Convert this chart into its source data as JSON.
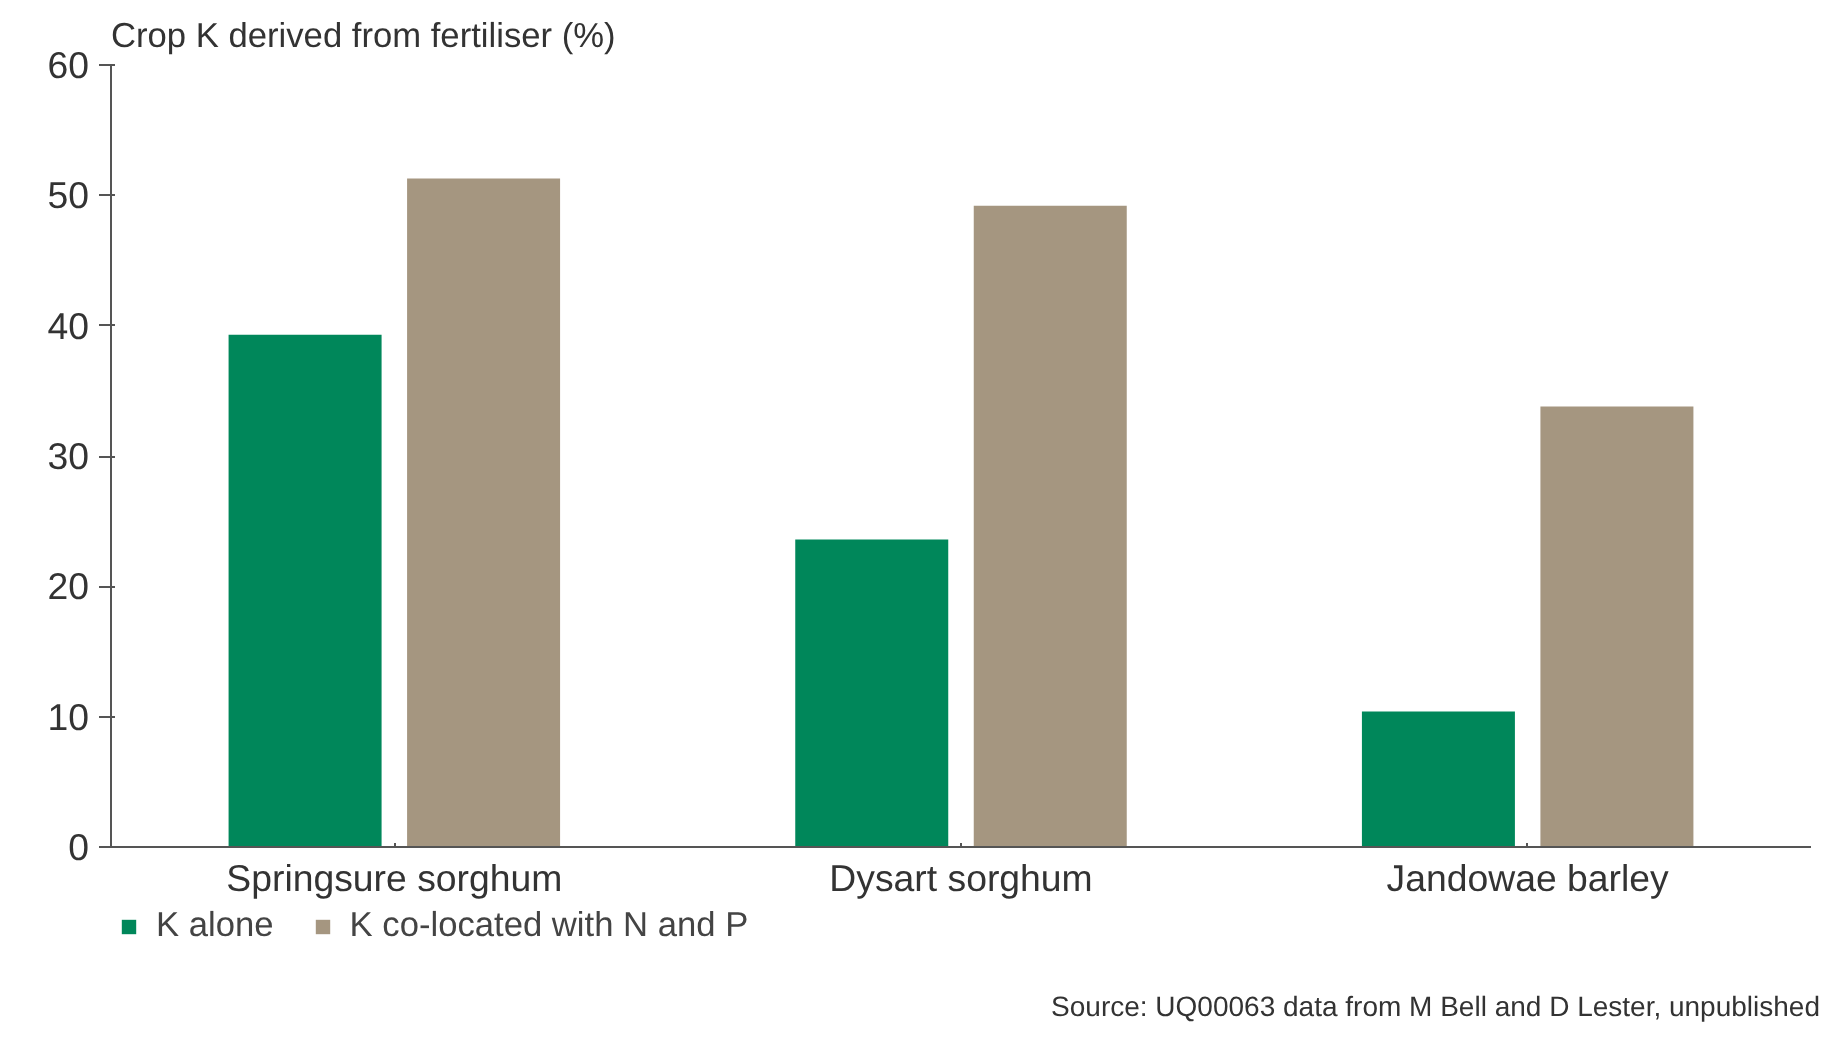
{
  "chart_data": {
    "type": "bar",
    "ylabel": "Crop K derived from fertiliser (%)",
    "categories": [
      "Springsure sorghum",
      "Dysart sorghum",
      "Jandowae barley"
    ],
    "series": [
      {
        "name": "K alone",
        "color": "#00875a",
        "values": [
          39.3,
          23.6,
          10.4
        ]
      },
      {
        "name": "K co-located with N and P",
        "color": "#a59680",
        "values": [
          51.3,
          49.2,
          33.8
        ]
      }
    ],
    "ylim": [
      0,
      60
    ],
    "yticks": [
      0,
      10,
      20,
      30,
      40,
      50,
      60
    ],
    "grid": false,
    "legend": "bottom left",
    "annotations": [
      "Source: UQ00063 data from M Bell and D Lester, unpublished"
    ]
  }
}
